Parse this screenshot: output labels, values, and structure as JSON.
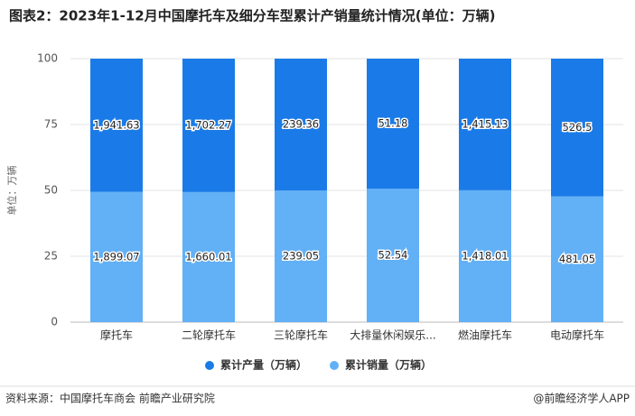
{
  "chart_data": {
    "type": "bar",
    "stacking": "percent",
    "title": "图表2：2023年1-12月中国摩托车及细分车型累计产销量统计情况(单位：万辆)",
    "y_label": "单位：万辆",
    "categories": [
      "摩托车",
      "二轮摩托车",
      "三轮摩托车",
      "大排量休闲娱乐...",
      "燃油摩托车",
      "电动摩托车"
    ],
    "series": [
      {
        "name": "累计产量（万辆）",
        "color": "#1a7be8",
        "values": [
          1941.63,
          1702.27,
          239.36,
          51.18,
          1415.13,
          526.5
        ],
        "value_labels": [
          "1,941.63",
          "1,702.27",
          "239.36",
          "51.18",
          "1,415.13",
          "526.5"
        ]
      },
      {
        "name": "累计销量（万辆）",
        "color": "#62b0f6",
        "values": [
          1899.07,
          1660.01,
          239.05,
          52.54,
          1418.01,
          481.05
        ],
        "value_labels": [
          "1,899.07",
          "1,660.01",
          "239.05",
          "52.54",
          "1,418.01",
          "481.05"
        ]
      }
    ],
    "ylim": [
      0,
      100
    ],
    "yticks": [
      0,
      25,
      50,
      75,
      100
    ],
    "grid": true,
    "legend": "bottom",
    "source": "资料来源：中国摩托车商会 前瞻产业研究院",
    "credit": "@前瞻经济学人APP"
  }
}
